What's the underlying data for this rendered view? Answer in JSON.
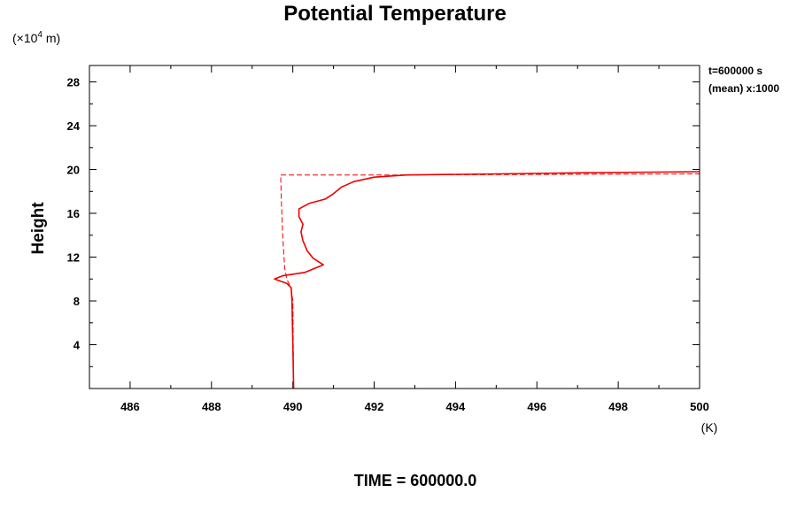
{
  "chart_data": {
    "type": "line",
    "title": "Potential Temperature",
    "xlabel": "(K)",
    "ylabel": "Height",
    "y_unit_prefix": "(×10",
    "y_unit_exponent": "4",
    "y_unit_suffix": " m)",
    "xlim": [
      485,
      500
    ],
    "ylim": [
      0,
      29.5
    ],
    "x_ticks": [
      486,
      488,
      490,
      492,
      494,
      496,
      498,
      500
    ],
    "y_ticks": [
      4,
      8,
      12,
      16,
      20,
      24,
      28
    ],
    "grid": false,
    "series": [
      {
        "style": "solid",
        "color": "#ee0000",
        "points": [
          [
            490.02,
            0
          ],
          [
            490.0,
            4
          ],
          [
            489.98,
            8
          ],
          [
            489.96,
            9.2
          ],
          [
            489.85,
            9.6
          ],
          [
            489.55,
            10.0
          ],
          [
            489.75,
            10.3
          ],
          [
            490.3,
            10.6
          ],
          [
            490.75,
            11.3
          ],
          [
            490.5,
            11.9
          ],
          [
            490.35,
            12.6
          ],
          [
            490.25,
            13.5
          ],
          [
            490.2,
            14.3
          ],
          [
            490.25,
            15.0
          ],
          [
            490.15,
            15.7
          ],
          [
            490.15,
            16.4
          ],
          [
            490.4,
            16.9
          ],
          [
            490.8,
            17.3
          ],
          [
            491.0,
            17.8
          ],
          [
            491.2,
            18.4
          ],
          [
            491.5,
            18.9
          ],
          [
            492.0,
            19.3
          ],
          [
            492.8,
            19.5
          ],
          [
            495.0,
            19.6
          ],
          [
            497.0,
            19.7
          ],
          [
            500.0,
            19.8
          ]
        ]
      },
      {
        "style": "dashed",
        "color": "#ee0000",
        "points": [
          [
            490.02,
            0
          ],
          [
            490.0,
            8
          ],
          [
            489.95,
            9.2
          ],
          [
            489.85,
            10.0
          ],
          [
            489.8,
            11.0
          ],
          [
            489.75,
            14.0
          ],
          [
            489.72,
            17.0
          ],
          [
            489.7,
            19.5
          ],
          [
            492.5,
            19.5
          ],
          [
            500.0,
            19.6
          ]
        ]
      }
    ]
  },
  "annotation": {
    "line1": "t=600000 s",
    "line2": "(mean) x:1000"
  },
  "footer": {
    "time_text": "TIME = 600000.0"
  }
}
